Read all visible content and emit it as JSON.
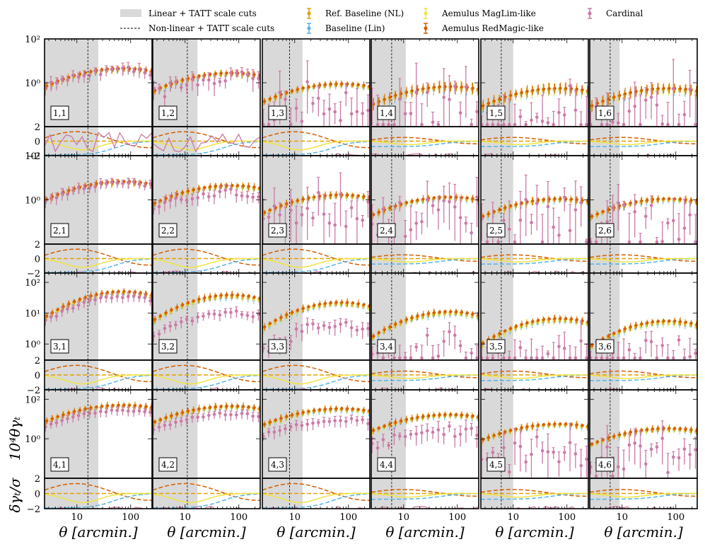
{
  "chart_data": {
    "type": "scatter",
    "title": "",
    "legend_position": "top",
    "legend": [
      {
        "key": "lin_cut",
        "label": "Linear + TATT scale cuts",
        "style": "band",
        "color": "#d9d9d9"
      },
      {
        "key": "nl_cut",
        "label": "Non-linear + TATT scale cuts",
        "style": "dashed",
        "color": "#000000"
      },
      {
        "key": "ref_nl",
        "label": "Ref. Baseline (NL)",
        "style": "errorbar",
        "color": "#E69F00"
      },
      {
        "key": "base_lin",
        "label": "Baseline (Lin)",
        "style": "errorbar",
        "color": "#56B4E9"
      },
      {
        "key": "maglim",
        "label": "Aemulus MagLim-like",
        "style": "errorbar",
        "color": "#F0E442"
      },
      {
        "key": "redmagic",
        "label": "Aemulus RedMagic-like",
        "style": "errorbar",
        "color": "#D55E00"
      },
      {
        "key": "cardinal",
        "label": "Cardinal",
        "style": "errorbar",
        "color": "#CC79A7"
      }
    ],
    "ylabel_top": "10⁴θγₜ",
    "ylabel_bottom": "δγₜ/σ",
    "xlabel": "θ [arcmin.]",
    "x_axis": {
      "scale": "log",
      "range": [
        2.5,
        250
      ],
      "ticks": [
        10,
        100
      ],
      "tick_labels": [
        "10",
        "100"
      ]
    },
    "ratio_axis": {
      "range": [
        -2,
        2
      ],
      "ticks": [
        -2,
        0,
        2
      ],
      "tick_labels": [
        "−2",
        "0",
        "2"
      ]
    },
    "rows": [
      {
        "lens_bin": 1,
        "ylim": [
          0.01,
          100
        ],
        "yticks": [
          1,
          100
        ],
        "ytick_labels": [
          "10⁰",
          "10²"
        ],
        "cards": [
          {
            "label": "1,1",
            "lin_cut": 25,
            "nl_cut": 16,
            "amp": 4,
            "card_frac": 0.95,
            "card_scatter": 0.15
          },
          {
            "label": "1,2",
            "lin_cut": 17,
            "nl_cut": 11,
            "amp": 2.5,
            "card_frac": 0.7,
            "card_scatter": 0.3
          },
          {
            "label": "1,3",
            "lin_cut": 14,
            "nl_cut": 8,
            "amp": 0.8,
            "card_frac": 0.2,
            "card_scatter": 1.0
          },
          {
            "label": "1,4",
            "lin_cut": 11,
            "nl_cut": 6,
            "amp": 0.6,
            "card_frac": 0.1,
            "card_scatter": 1.3
          },
          {
            "label": "1,5",
            "lin_cut": 10,
            "nl_cut": 6,
            "amp": 0.5,
            "card_frac": 0.08,
            "card_scatter": 1.4
          },
          {
            "label": "1,6",
            "lin_cut": 9,
            "nl_cut": 6,
            "amp": 0.5,
            "card_frac": 0.05,
            "card_scatter": 1.4
          }
        ]
      },
      {
        "lens_bin": 2,
        "ylim": [
          0.01,
          100
        ],
        "yticks": [
          1,
          100
        ],
        "ytick_labels": [
          "10⁰",
          "10²"
        ],
        "cards": [
          {
            "label": "2,1",
            "lin_cut": 25,
            "nl_cut": 16,
            "amp": 6,
            "card_frac": 0.95,
            "card_scatter": 0.1
          },
          {
            "label": "2,2",
            "lin_cut": 17,
            "nl_cut": 11,
            "amp": 4,
            "card_frac": 0.55,
            "card_scatter": 0.15
          },
          {
            "label": "2,3",
            "lin_cut": 14,
            "nl_cut": 8,
            "amp": 1.5,
            "card_frac": 0.3,
            "card_scatter": 0.9
          },
          {
            "label": "2,4",
            "lin_cut": 11,
            "nl_cut": 6,
            "amp": 1.2,
            "card_frac": 0.2,
            "card_scatter": 1.1
          },
          {
            "label": "2,5",
            "lin_cut": 10,
            "nl_cut": 6,
            "amp": 1.0,
            "card_frac": 0.1,
            "card_scatter": 1.3
          },
          {
            "label": "2,6",
            "lin_cut": 9,
            "nl_cut": 6,
            "amp": 1.0,
            "card_frac": 0.08,
            "card_scatter": 1.3
          }
        ]
      },
      {
        "lens_bin": 3,
        "ylim": [
          0.3,
          200
        ],
        "yticks": [
          1,
          10,
          100
        ],
        "ytick_labels": [
          "10⁰",
          "10¹",
          "10²"
        ],
        "cards": [
          {
            "label": "3,1",
            "lin_cut": 25,
            "nl_cut": 16,
            "amp": 45,
            "card_frac": 0.75,
            "card_scatter": 0.05
          },
          {
            "label": "3,2",
            "lin_cut": 17,
            "nl_cut": 11,
            "amp": 35,
            "card_frac": 0.3,
            "card_scatter": 0.08
          },
          {
            "label": "3,3",
            "lin_cut": 14,
            "nl_cut": 8,
            "amp": 20,
            "card_frac": 0.2,
            "card_scatter": 0.2
          },
          {
            "label": "3,4",
            "lin_cut": 11,
            "nl_cut": 6,
            "amp": 10,
            "card_frac": 0.1,
            "card_scatter": 0.5
          },
          {
            "label": "3,5",
            "lin_cut": 10,
            "nl_cut": 6,
            "amp": 6,
            "card_frac": 0.05,
            "card_scatter": 0.8
          },
          {
            "label": "3,6",
            "lin_cut": 9,
            "nl_cut": 6,
            "amp": 5,
            "card_frac": 0.05,
            "card_scatter": 0.8
          }
        ]
      },
      {
        "lens_bin": 4,
        "ylim": [
          0.01,
          300
        ],
        "yticks": [
          1,
          100
        ],
        "ytick_labels": [
          "10⁰",
          "10²"
        ],
        "cards": [
          {
            "label": "4,1",
            "lin_cut": 25,
            "nl_cut": 16,
            "amp": 45,
            "card_frac": 0.6,
            "card_scatter": 0.05
          },
          {
            "label": "4,2",
            "lin_cut": 17,
            "nl_cut": 11,
            "amp": 40,
            "card_frac": 0.45,
            "card_scatter": 0.06
          },
          {
            "label": "4,3",
            "lin_cut": 14,
            "nl_cut": 8,
            "amp": 30,
            "card_frac": 0.3,
            "card_scatter": 0.1
          },
          {
            "label": "4,4",
            "lin_cut": 11,
            "nl_cut": 6,
            "amp": 15,
            "card_frac": 0.15,
            "card_scatter": 0.3
          },
          {
            "label": "4,5",
            "lin_cut": 10,
            "nl_cut": 6,
            "amp": 5,
            "card_frac": 0.05,
            "card_scatter": 0.8
          },
          {
            "label": "4,6",
            "lin_cut": 9,
            "nl_cut": 6,
            "amp": 3,
            "card_frac": 0.05,
            "card_scatter": 0.9
          }
        ]
      }
    ]
  }
}
